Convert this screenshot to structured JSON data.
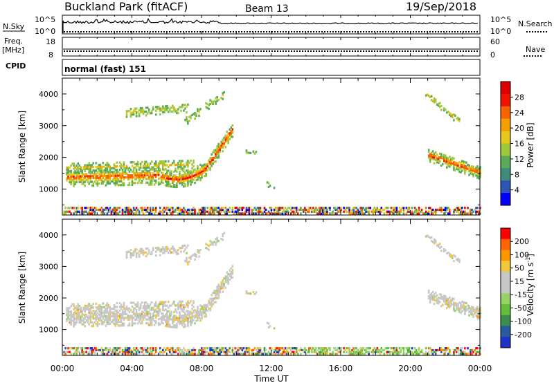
{
  "header": {
    "title": "Buckland Park (fitACF)",
    "beam": "Beam 13",
    "date": "19/Sep/2018"
  },
  "colors": {
    "power_scale": [
      "#0000ff",
      "#2d55b4",
      "#3c8c78",
      "#5aaa5a",
      "#a0c83c",
      "#e6c81e",
      "#f5a000",
      "#f56400",
      "#f01400",
      "#dc0000"
    ],
    "velocity_scale": [
      "#ff0000",
      "#ff6400",
      "#ff9600",
      "#f0c83c",
      "#c8c8c8",
      "#c8c8c8",
      "#96d264",
      "#64be3c",
      "#3c8c50",
      "#285aa0",
      "#1e32c8"
    ]
  },
  "chart_data": [
    {
      "type": "line",
      "name": "noise",
      "left_label_1": "N.Sky",
      "left_label_2": "N.Search",
      "y_ticks_left": [
        "10^5",
        "10^0"
      ],
      "y_ticks_right": [
        "10^5",
        "10^0"
      ],
      "x_range": [
        0,
        24
      ]
    },
    {
      "type": "line",
      "name": "freq",
      "left_label": "Freq.",
      "left_unit": "[MHz]",
      "right_label": "Nave",
      "y_ticks_left": [
        "18",
        "8"
      ],
      "y_ticks_right": [
        "60",
        "0"
      ],
      "cpid_label": "CPID",
      "cpid_text": "normal (fast) 151"
    },
    {
      "type": "heatmap",
      "name": "power",
      "ylabel": "Slant Range [km]",
      "y_ticks": [
        "1000",
        "2000",
        "3000",
        "4000"
      ],
      "ylim": [
        180,
        4500
      ],
      "colorbar_label": "Power [dB]",
      "colorbar_ticks": [
        "4",
        "8",
        "12",
        "16",
        "20",
        "24",
        "28"
      ],
      "colorbar_range": [
        0,
        30
      ]
    },
    {
      "type": "heatmap",
      "name": "velocity",
      "ylabel": "Slant Range [km]",
      "y_ticks": [
        "1000",
        "2000",
        "3000",
        "4000"
      ],
      "ylim": [
        180,
        4500
      ],
      "colorbar_label_main": "Velocity [m s",
      "colorbar_label_sup": "-1",
      "colorbar_label_end": "]",
      "colorbar_ticks": [
        "200",
        "100",
        "50",
        "15",
        "-15",
        "-50",
        "-100",
        "-200"
      ],
      "x_ticks": [
        "00:00",
        "04:00",
        "08:00",
        "12:00",
        "16:00",
        "20:00",
        "00:00"
      ],
      "xlabel": "Time UT",
      "xlim": [
        0,
        24
      ]
    }
  ]
}
